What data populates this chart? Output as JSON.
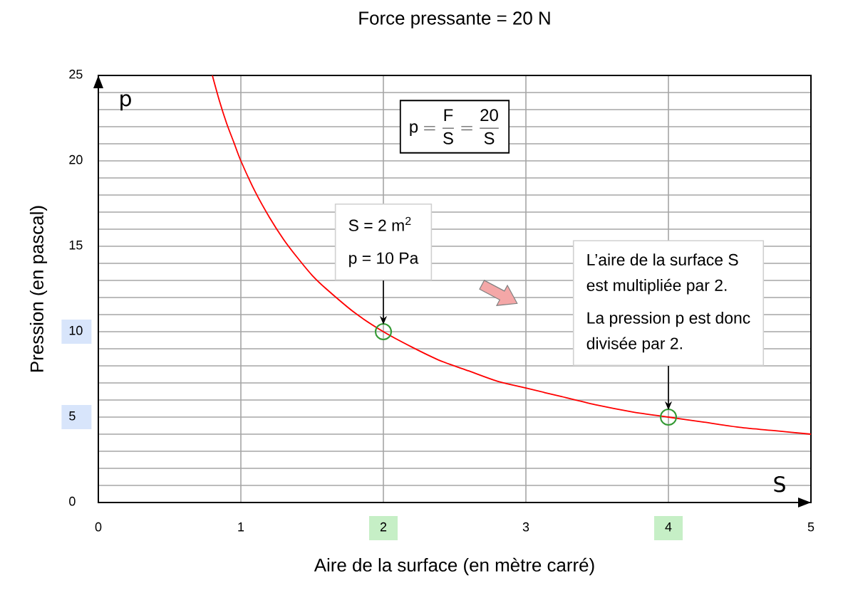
{
  "chart_data": {
    "type": "line",
    "title": "Force pressante = 20 N",
    "xlabel": "Aire de la surface (en mètre carré)",
    "ylabel": "Pression (en pascal)",
    "annotations": [
      "\\mathrm{p}=\\frac{\\mathrm{F}}{\\mathrm{S}}=\\frac{\\mathrm{20}}{\\mathrm{S}}",
      "p",
      "S",
      "S = 2 m$^{2}$",
      {
        "text": "p = 10 Pa",
        "x": 2,
        "y": 10
      },
      "L’aire de la surface S est multipliée par 2.",
      {
        "text": "La pression p est donc divisée par 2.",
        "x": 4,
        "y": 5
      }
    ],
    "series": [
      {
        "color": "#ff0000",
        "marker": "none",
        "line_style": "solid",
        "x": [
          0.8,
          0.85,
          0.9,
          0.95,
          1,
          1.1,
          1.2,
          1.3,
          1.4,
          1.5,
          1.6,
          1.8,
          2,
          2.2,
          2.4,
          2.6,
          2.8,
          3,
          3.25,
          3.5,
          3.75,
          4,
          4.25,
          4.5,
          4.75,
          5
        ],
        "values": [
          25,
          23.5,
          22.2,
          21.1,
          20,
          18.2,
          16.7,
          15.4,
          14.3,
          13.3,
          12.5,
          11.1,
          10,
          9.1,
          8.3,
          7.7,
          7.1,
          6.7,
          6.2,
          5.7,
          5.3,
          5,
          4.7,
          4.4,
          4.2,
          4
        ]
      },
      {
        "type": "scatter",
        "color": "#339933",
        "marker": "circle",
        "x": [
          2,
          4
        ],
        "values": [
          10,
          5
        ]
      }
    ],
    "xlim": [
      0,
      5
    ],
    "ylim": [
      0,
      25
    ],
    "xticks": [
      0,
      1,
      2,
      3,
      4,
      5
    ],
    "yticks": [
      0,
      {
        "value": 1,
        "label": null
      },
      {
        "value": 2,
        "label": null
      },
      {
        "value": 3,
        "label": null
      },
      {
        "value": 4,
        "label": null
      },
      5,
      {
        "value": 6,
        "label": null
      },
      {
        "value": 7,
        "label": null
      },
      {
        "value": 8,
        "label": null
      },
      {
        "value": 9,
        "label": null
      },
      10,
      {
        "value": 11,
        "label": null
      },
      {
        "value": 12,
        "label": null
      },
      {
        "value": 13,
        "label": null
      },
      {
        "value": 14,
        "label": null
      },
      15,
      {
        "value": 16,
        "label": null
      },
      {
        "value": 17,
        "label": null
      },
      {
        "value": 18,
        "label": null
      },
      {
        "value": 19,
        "label": null
      },
      20,
      {
        "value": 21,
        "label": null
      },
      {
        "value": 22,
        "label": null
      },
      {
        "value": 23,
        "label": null
      },
      {
        "value": 24,
        "label": null
      },
      25
    ],
    "grid": true
  }
}
